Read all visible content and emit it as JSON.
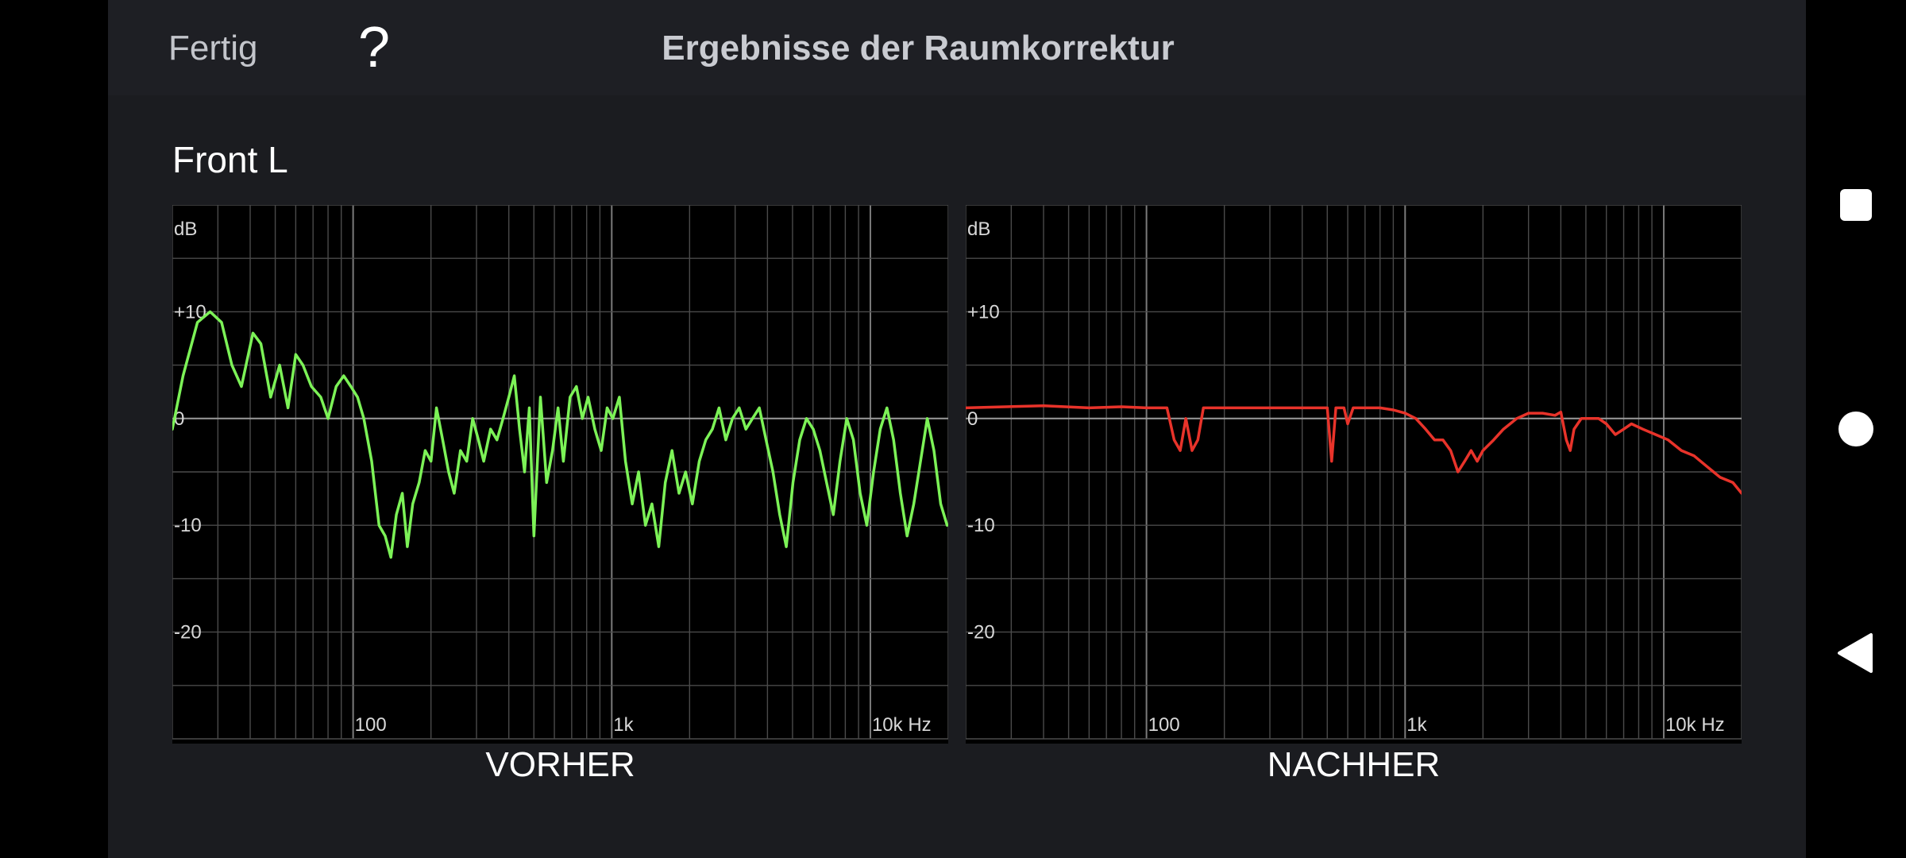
{
  "header": {
    "done_label": "Fertig",
    "help_label": "?",
    "title": "Ergebnisse der Raumkorrektur"
  },
  "channel": "Front L",
  "next_icon": "chevron-right-icon",
  "system_nav": {
    "icons": [
      "recents-square-icon",
      "home-circle-icon",
      "back-triangle-icon"
    ]
  },
  "colors": {
    "before_line": "#7CF257",
    "after_line": "#E8332A",
    "grid": "#4a4a4a",
    "zero_line": "#9a9a9a",
    "panel_bg": "#000000",
    "app_bg": "#1b1c20"
  },
  "chart_data": [
    {
      "type": "line",
      "title": "VORHER",
      "xlabel": "Hz",
      "ylabel": "dB",
      "x_scale": "log",
      "xlim": [
        20,
        20000
      ],
      "ylim": [
        -30,
        20
      ],
      "grid": true,
      "x_tick_labels": [
        "100",
        "1k",
        "10k Hz"
      ],
      "y_tick_labels": [
        "dB",
        "+10",
        "0",
        "-10",
        "-20"
      ],
      "series": [
        {
          "color": "#7CF257",
          "points": [
            [
              20,
              -1
            ],
            [
              22,
              4
            ],
            [
              25,
              9
            ],
            [
              28,
              10
            ],
            [
              31,
              9
            ],
            [
              34,
              5
            ],
            [
              37,
              3
            ],
            [
              41,
              8
            ],
            [
              44,
              7
            ],
            [
              48,
              2
            ],
            [
              52,
              5
            ],
            [
              56,
              1
            ],
            [
              60,
              6
            ],
            [
              64,
              5
            ],
            [
              69,
              3
            ],
            [
              75,
              2
            ],
            [
              80,
              0
            ],
            [
              86,
              3
            ],
            [
              92,
              4
            ],
            [
              98,
              3
            ],
            [
              104,
              2
            ],
            [
              110,
              0
            ],
            [
              118,
              -4
            ],
            [
              126,
              -10
            ],
            [
              133,
              -11
            ],
            [
              140,
              -13
            ],
            [
              147,
              -9
            ],
            [
              155,
              -7
            ],
            [
              162,
              -12
            ],
            [
              170,
              -8
            ],
            [
              180,
              -6
            ],
            [
              190,
              -3
            ],
            [
              200,
              -4
            ],
            [
              210,
              1
            ],
            [
              222,
              -2
            ],
            [
              234,
              -5
            ],
            [
              246,
              -7
            ],
            [
              260,
              -3
            ],
            [
              275,
              -4
            ],
            [
              290,
              0
            ],
            [
              305,
              -2
            ],
            [
              320,
              -4
            ],
            [
              340,
              -1
            ],
            [
              360,
              -2
            ],
            [
              380,
              0
            ],
            [
              400,
              2
            ],
            [
              420,
              4
            ],
            [
              440,
              -1
            ],
            [
              460,
              -5
            ],
            [
              480,
              1
            ],
            [
              500,
              -11
            ],
            [
              530,
              2
            ],
            [
              560,
              -6
            ],
            [
              590,
              -3
            ],
            [
              620,
              1
            ],
            [
              650,
              -4
            ],
            [
              690,
              2
            ],
            [
              730,
              3
            ],
            [
              770,
              0
            ],
            [
              810,
              2
            ],
            [
              860,
              -1
            ],
            [
              910,
              -3
            ],
            [
              960,
              1
            ],
            [
              1010,
              0
            ],
            [
              1070,
              2
            ],
            [
              1130,
              -4
            ],
            [
              1200,
              -8
            ],
            [
              1270,
              -5
            ],
            [
              1350,
              -10
            ],
            [
              1430,
              -8
            ],
            [
              1520,
              -12
            ],
            [
              1610,
              -6
            ],
            [
              1710,
              -3
            ],
            [
              1820,
              -7
            ],
            [
              1930,
              -5
            ],
            [
              2050,
              -8
            ],
            [
              2180,
              -4
            ],
            [
              2310,
              -2
            ],
            [
              2450,
              -1
            ],
            [
              2600,
              1
            ],
            [
              2760,
              -2
            ],
            [
              2930,
              0
            ],
            [
              3110,
              1
            ],
            [
              3300,
              -1
            ],
            [
              3500,
              0
            ],
            [
              3720,
              1
            ],
            [
              3950,
              -2
            ],
            [
              4200,
              -5
            ],
            [
              4460,
              -9
            ],
            [
              4730,
              -12
            ],
            [
              5020,
              -6
            ],
            [
              5330,
              -2
            ],
            [
              5660,
              0
            ],
            [
              6010,
              -1
            ],
            [
              6380,
              -3
            ],
            [
              6770,
              -6
            ],
            [
              7190,
              -9
            ],
            [
              7630,
              -4
            ],
            [
              8100,
              0
            ],
            [
              8600,
              -2
            ],
            [
              9130,
              -7
            ],
            [
              9690,
              -10
            ],
            [
              10290,
              -5
            ],
            [
              10920,
              -1
            ],
            [
              11590,
              1
            ],
            [
              12300,
              -2
            ],
            [
              13060,
              -7
            ],
            [
              13870,
              -11
            ],
            [
              14720,
              -8
            ],
            [
              15630,
              -4
            ],
            [
              16590,
              0
            ],
            [
              17610,
              -3
            ],
            [
              18700,
              -8
            ],
            [
              19800,
              -10
            ]
          ]
        }
      ]
    },
    {
      "type": "line",
      "title": "NACHHER",
      "xlabel": "Hz",
      "ylabel": "dB",
      "x_scale": "log",
      "xlim": [
        20,
        20000
      ],
      "ylim": [
        -30,
        20
      ],
      "grid": true,
      "x_tick_labels": [
        "100",
        "1k",
        "10k Hz"
      ],
      "y_tick_labels": [
        "dB",
        "+10",
        "0",
        "-10",
        "-20"
      ],
      "series": [
        {
          "color": "#E8332A",
          "points": [
            [
              20,
              1
            ],
            [
              40,
              1.2
            ],
            [
              60,
              1
            ],
            [
              80,
              1.1
            ],
            [
              100,
              1
            ],
            [
              120,
              1
            ],
            [
              128,
              -2
            ],
            [
              135,
              -3
            ],
            [
              142,
              0
            ],
            [
              150,
              -3
            ],
            [
              158,
              -2
            ],
            [
              166,
              1
            ],
            [
              200,
              1
            ],
            [
              300,
              1
            ],
            [
              400,
              1
            ],
            [
              500,
              1
            ],
            [
              520,
              -4
            ],
            [
              540,
              1
            ],
            [
              580,
              1
            ],
            [
              600,
              -0.5
            ],
            [
              630,
              1
            ],
            [
              700,
              1
            ],
            [
              800,
              1
            ],
            [
              900,
              0.8
            ],
            [
              1000,
              0.5
            ],
            [
              1100,
              0
            ],
            [
              1200,
              -1
            ],
            [
              1300,
              -2
            ],
            [
              1400,
              -2
            ],
            [
              1500,
              -3
            ],
            [
              1600,
              -5
            ],
            [
              1700,
              -4
            ],
            [
              1800,
              -3
            ],
            [
              1900,
              -4
            ],
            [
              2000,
              -3
            ],
            [
              2200,
              -2
            ],
            [
              2400,
              -1
            ],
            [
              2700,
              0
            ],
            [
              3000,
              0.5
            ],
            [
              3400,
              0.5
            ],
            [
              3800,
              0.3
            ],
            [
              4000,
              0.6
            ],
            [
              4200,
              -2
            ],
            [
              4350,
              -3
            ],
            [
              4500,
              -1
            ],
            [
              4800,
              0
            ],
            [
              5200,
              0
            ],
            [
              5600,
              0
            ],
            [
              6000,
              -0.5
            ],
            [
              6500,
              -1.5
            ],
            [
              7000,
              -1
            ],
            [
              7500,
              -0.5
            ],
            [
              8300,
              -1
            ],
            [
              9300,
              -1.5
            ],
            [
              10400,
              -2
            ],
            [
              11700,
              -3
            ],
            [
              13100,
              -3.5
            ],
            [
              14700,
              -4.5
            ],
            [
              16500,
              -5.5
            ],
            [
              18500,
              -6
            ],
            [
              20000,
              -7
            ]
          ]
        }
      ]
    }
  ]
}
